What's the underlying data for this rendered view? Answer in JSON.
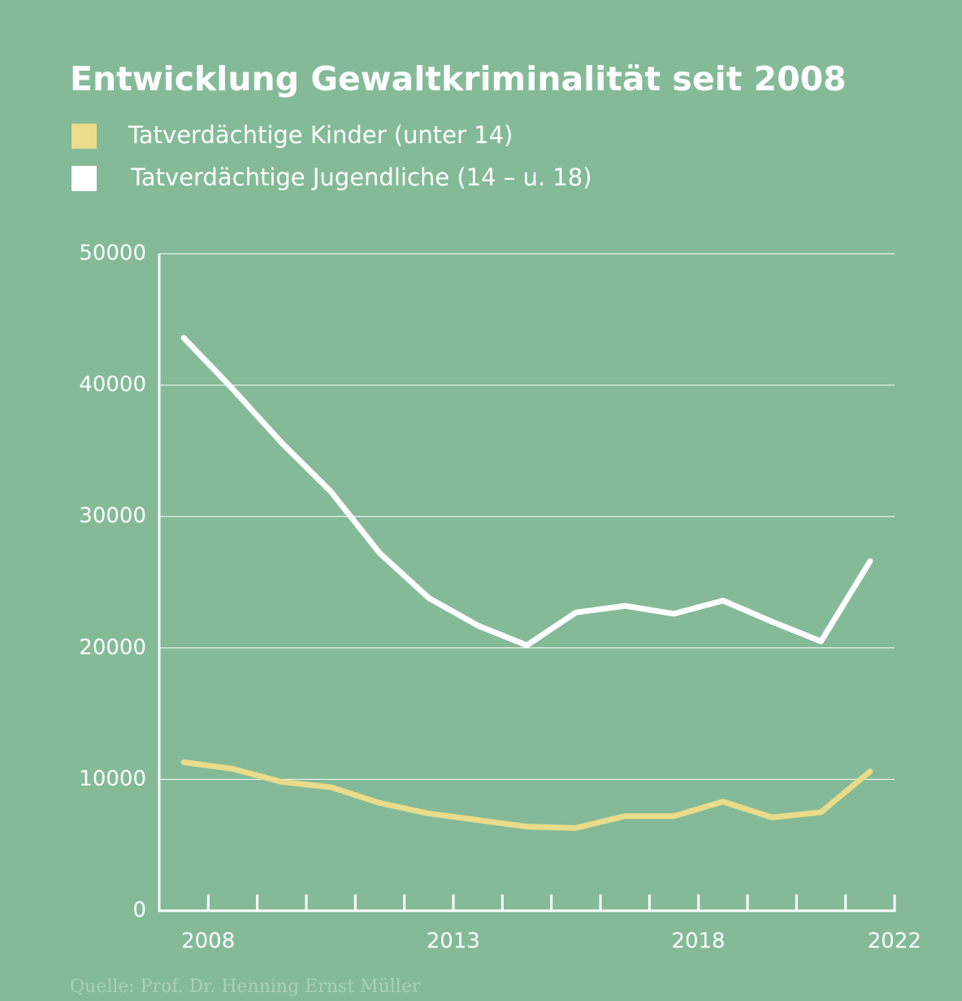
{
  "chart_data": {
    "type": "line",
    "title": "Entwicklung Gewaltkriminalität seit 2008",
    "categories": [
      "2008",
      null,
      null,
      null,
      null,
      "2013",
      null,
      null,
      null,
      null,
      "2018",
      null,
      null,
      null,
      "2022"
    ],
    "series": [
      {
        "name": "Tatverdächtige Kinder (unter 14)",
        "color": "#eadc8a",
        "values": [
          11300,
          10800,
          9800,
          9400,
          8200,
          7400,
          6900,
          6400,
          6300,
          7200,
          7200,
          8300,
          7100,
          7500,
          10600
        ]
      },
      {
        "name": "Tatverdächtige Jugendliche (14 – u. 18)",
        "color": "#ffffff",
        "values": [
          43600,
          39700,
          35600,
          31900,
          27200,
          23800,
          21700,
          20200,
          22700,
          23200,
          22600,
          23600,
          22000,
          20500,
          26600
        ]
      }
    ],
    "ylim": [
      0,
      50000
    ],
    "yticks": [
      0,
      10000,
      20000,
      30000,
      40000,
      50000
    ],
    "grid": true,
    "source": "Quelle: Prof. Dr. Henning Ernst Müller"
  }
}
